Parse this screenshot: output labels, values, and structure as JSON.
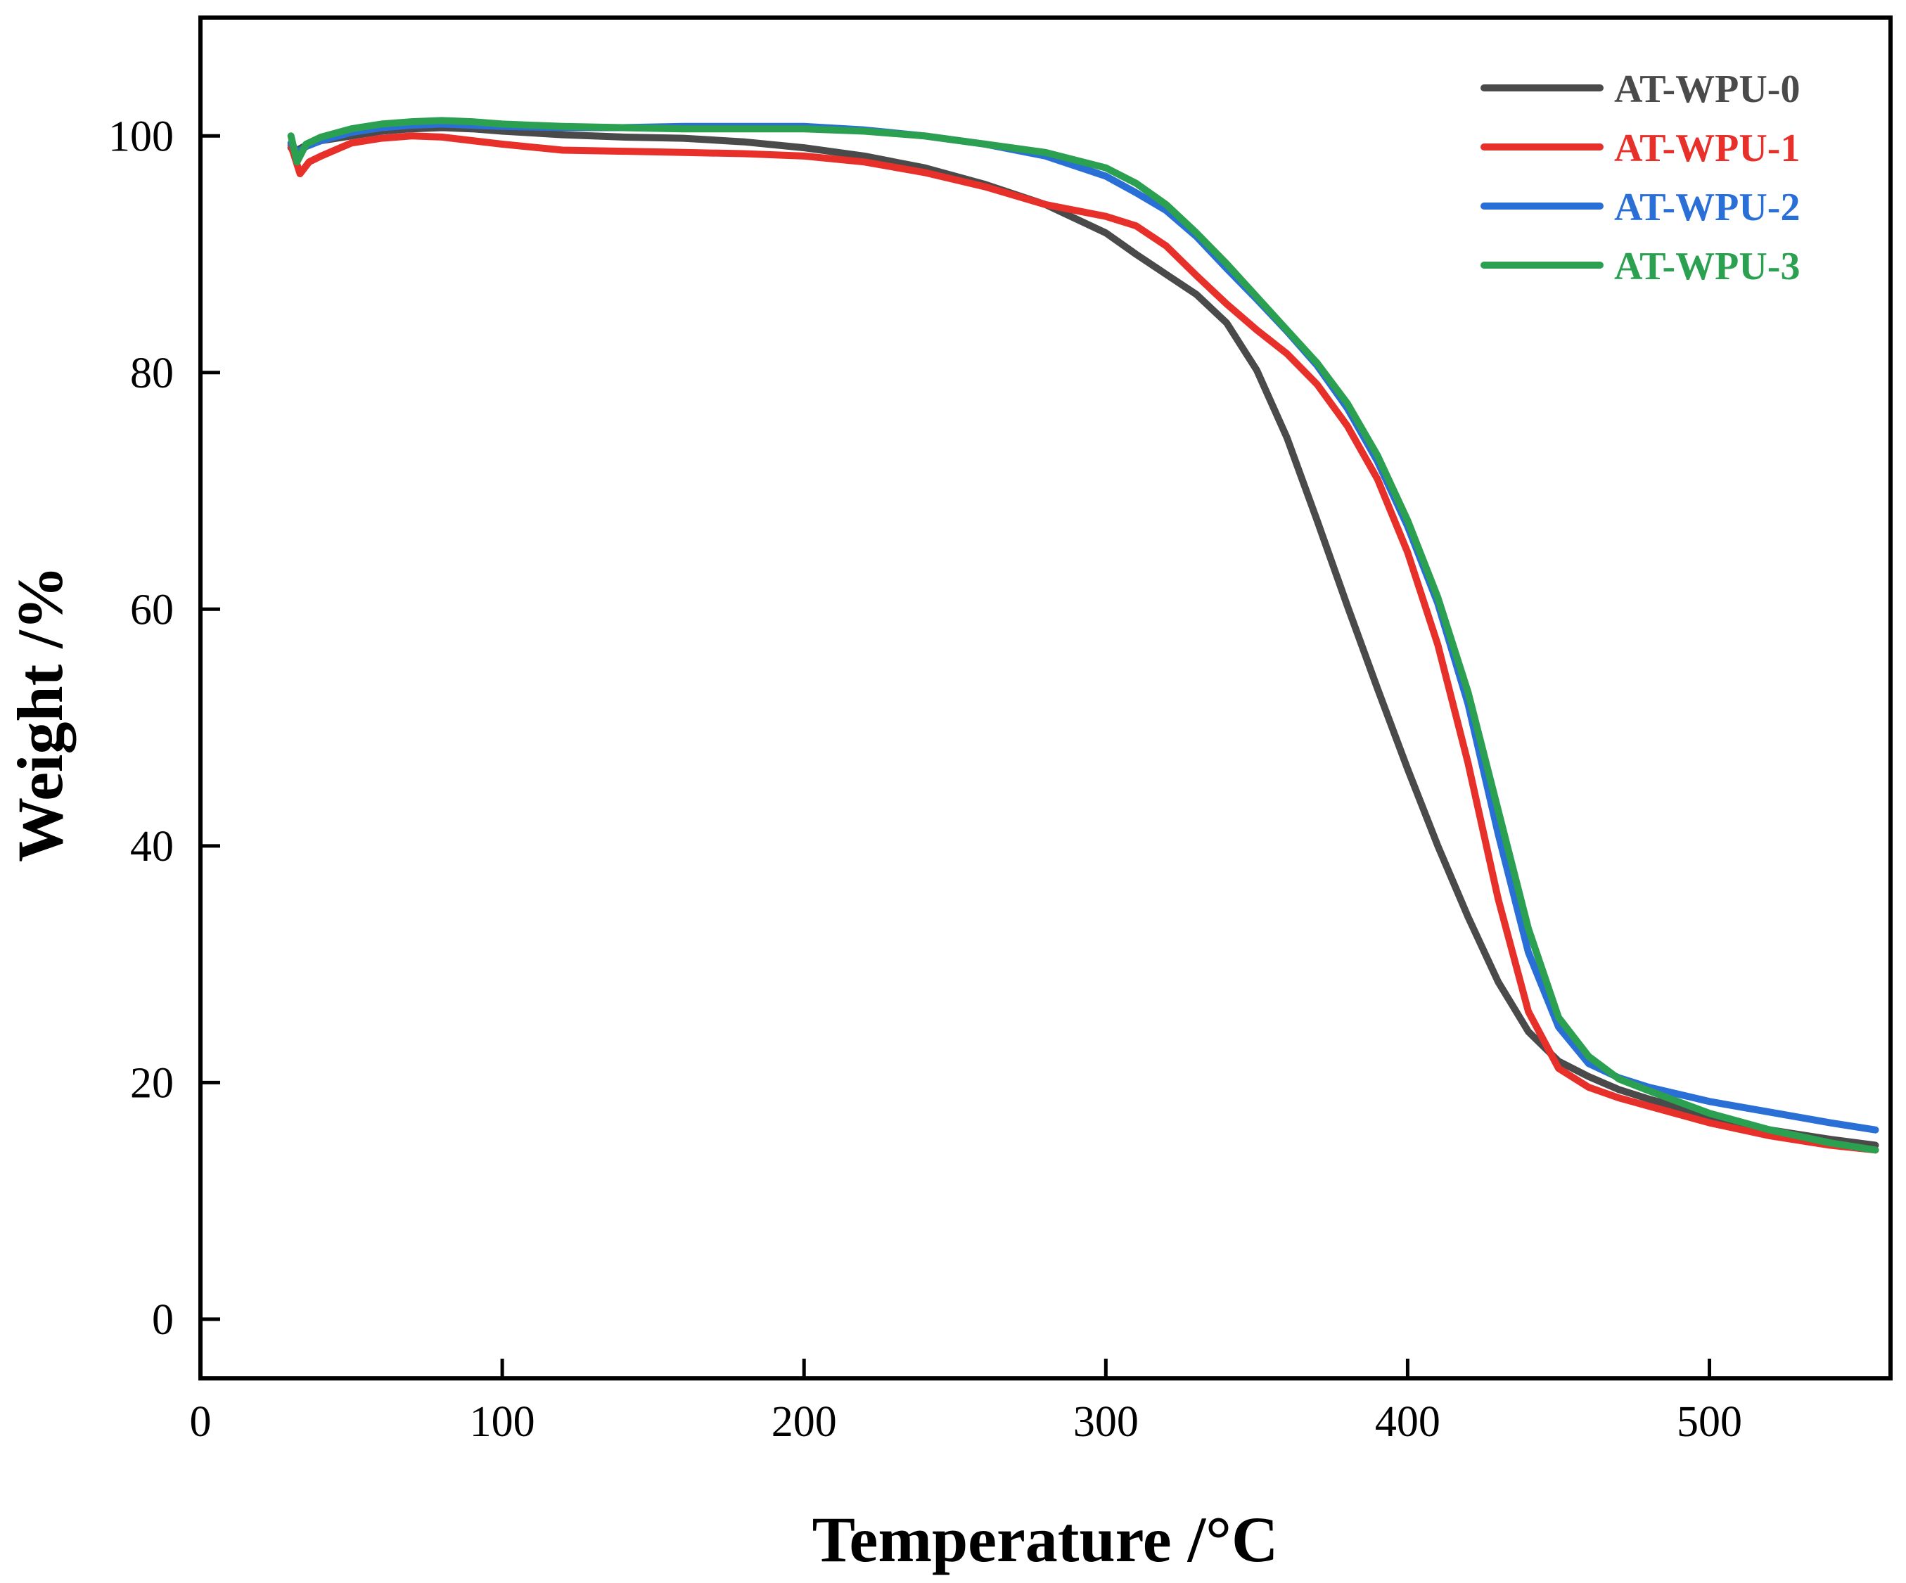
{
  "chart_data": {
    "type": "line",
    "title": "",
    "xlabel": "Temperature /°C",
    "ylabel": "Weight /%",
    "xlim": [
      0,
      560
    ],
    "ylim": [
      -5,
      110
    ],
    "xticks": [
      0,
      100,
      200,
      300,
      400,
      500
    ],
    "yticks": [
      0,
      20,
      40,
      60,
      80,
      100
    ],
    "xtick_labels": [
      "0",
      "100",
      "200",
      "300",
      "400",
      "500"
    ],
    "ytick_labels": [
      "0",
      "20",
      "40",
      "60",
      "80",
      "100"
    ],
    "grid": false,
    "legend_position": "top-right",
    "series": [
      {
        "name": "AT-WPU-0",
        "color": "#4a4a4a",
        "x": [
          30,
          32,
          35,
          40,
          50,
          60,
          70,
          80,
          90,
          100,
          120,
          140,
          160,
          180,
          200,
          220,
          240,
          260,
          280,
          300,
          310,
          320,
          330,
          340,
          350,
          360,
          370,
          380,
          390,
          400,
          410,
          420,
          430,
          440,
          450,
          460,
          470,
          480,
          500,
          520,
          540,
          555
        ],
        "y": [
          99.0,
          98.8,
          99.2,
          99.6,
          100.0,
          100.4,
          100.6,
          100.7,
          100.6,
          100.4,
          100.1,
          99.9,
          99.8,
          99.5,
          99.0,
          98.3,
          97.3,
          95.9,
          94.2,
          91.8,
          90.0,
          88.3,
          86.6,
          84.2,
          80.2,
          74.5,
          67.5,
          60.3,
          53.3,
          46.5,
          40.0,
          34.0,
          28.5,
          24.3,
          21.8,
          20.5,
          19.4,
          18.6,
          17.2,
          16.0,
          15.2,
          14.7
        ]
      },
      {
        "name": "AT-WPU-1",
        "color": "#e8302b",
        "x": [
          30,
          33,
          36,
          40,
          50,
          60,
          70,
          80,
          90,
          100,
          120,
          140,
          160,
          180,
          200,
          220,
          240,
          260,
          280,
          300,
          310,
          320,
          330,
          340,
          350,
          360,
          370,
          380,
          390,
          400,
          410,
          415,
          420,
          430,
          440,
          450,
          460,
          470,
          480,
          500,
          520,
          540,
          555
        ],
        "y": [
          99.2,
          96.8,
          97.8,
          98.3,
          99.4,
          99.8,
          100.0,
          99.9,
          99.6,
          99.3,
          98.8,
          98.7,
          98.6,
          98.5,
          98.3,
          97.8,
          96.9,
          95.7,
          94.2,
          93.2,
          92.4,
          90.7,
          88.2,
          85.8,
          83.6,
          81.6,
          79.0,
          75.5,
          71.0,
          64.8,
          57.0,
          52.0,
          47.0,
          35.5,
          26.0,
          21.2,
          19.6,
          18.7,
          18.0,
          16.6,
          15.5,
          14.7,
          14.3
        ]
      },
      {
        "name": "AT-WPU-2",
        "color": "#2a6fd6",
        "x": [
          30,
          32,
          35,
          40,
          50,
          60,
          70,
          80,
          90,
          100,
          120,
          140,
          160,
          180,
          200,
          220,
          240,
          260,
          280,
          300,
          310,
          320,
          330,
          340,
          350,
          360,
          370,
          380,
          390,
          400,
          410,
          420,
          430,
          440,
          450,
          460,
          470,
          480,
          500,
          520,
          540,
          555
        ],
        "y": [
          99.4,
          98.6,
          99.1,
          99.6,
          100.3,
          100.7,
          100.9,
          101.0,
          100.9,
          100.8,
          100.7,
          100.7,
          100.8,
          100.8,
          100.8,
          100.5,
          100.0,
          99.3,
          98.3,
          96.6,
          95.2,
          93.7,
          91.5,
          88.8,
          86.2,
          83.5,
          80.6,
          77.0,
          72.5,
          67.0,
          60.5,
          52.0,
          41.0,
          31.0,
          24.7,
          21.6,
          20.4,
          19.6,
          18.4,
          17.5,
          16.6,
          16.0
        ]
      },
      {
        "name": "AT-WPU-3",
        "color": "#2aa050",
        "x": [
          30,
          32,
          35,
          40,
          50,
          60,
          70,
          80,
          90,
          100,
          120,
          140,
          160,
          180,
          200,
          220,
          240,
          260,
          280,
          300,
          310,
          320,
          330,
          340,
          350,
          360,
          370,
          380,
          390,
          400,
          410,
          420,
          430,
          440,
          450,
          460,
          470,
          480,
          500,
          520,
          540,
          555
        ],
        "y": [
          100.0,
          97.8,
          99.3,
          99.9,
          100.6,
          101.0,
          101.2,
          101.3,
          101.2,
          101.0,
          100.8,
          100.7,
          100.6,
          100.6,
          100.6,
          100.4,
          100.0,
          99.3,
          98.6,
          97.3,
          96.0,
          94.2,
          91.8,
          89.2,
          86.4,
          83.6,
          80.8,
          77.4,
          73.0,
          67.5,
          61.0,
          53.0,
          43.0,
          33.0,
          25.5,
          22.2,
          20.3,
          19.3,
          17.4,
          16.0,
          14.9,
          14.3
        ]
      }
    ]
  }
}
